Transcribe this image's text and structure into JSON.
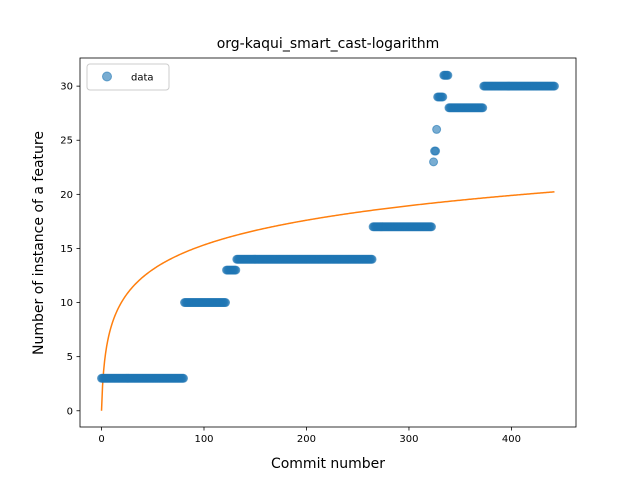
{
  "chart_data": {
    "type": "scatter",
    "title": "org-kaqui_smart_cast-logarithm",
    "xlabel": "Commit number",
    "ylabel": "Number of instance of a feature",
    "xlim": [
      -21,
      463
    ],
    "ylim": [
      -1.5,
      32.6
    ],
    "xticks": [
      0,
      100,
      200,
      300,
      400
    ],
    "yticks": [
      0,
      5,
      10,
      15,
      20,
      25,
      30
    ],
    "grid": false,
    "legend": {
      "position": "top-left",
      "entries": [
        "data"
      ]
    },
    "colors": {
      "data": "#1f77b4",
      "fit": "#ff7f0e"
    },
    "series": [
      {
        "name": "data",
        "kind": "scatter",
        "steps": [
          {
            "x_start": 0,
            "x_end": 80,
            "y": 3
          },
          {
            "x_start": 81,
            "x_end": 121,
            "y": 10
          },
          {
            "x_start": 122,
            "x_end": 131,
            "y": 13
          },
          {
            "x_start": 132,
            "x_end": 264,
            "y": 14
          },
          {
            "x_start": 265,
            "x_end": 322,
            "y": 17
          },
          {
            "x_start": 324,
            "x_end": 324,
            "y": 23
          },
          {
            "x_start": 325,
            "x_end": 326,
            "y": 24
          },
          {
            "x_start": 327,
            "x_end": 327,
            "y": 26
          },
          {
            "x_start": 328,
            "x_end": 333,
            "y": 29
          },
          {
            "x_start": 334,
            "x_end": 338,
            "y": 31
          },
          {
            "x_start": 339,
            "x_end": 372,
            "y": 28
          },
          {
            "x_start": 373,
            "x_end": 442,
            "y": 30
          }
        ]
      },
      {
        "kind": "line",
        "function": "y = 3.32 * ln(x + 1)",
        "x_range": [
          0,
          442
        ]
      }
    ]
  }
}
